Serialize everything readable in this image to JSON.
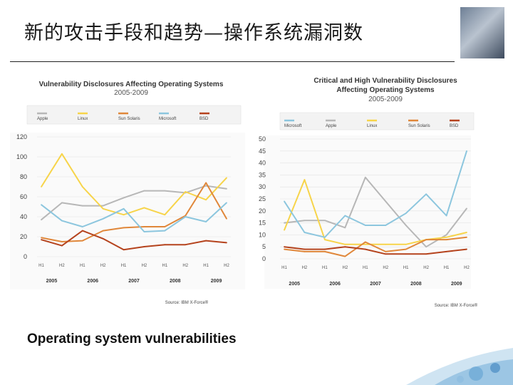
{
  "slide": {
    "title": "新的攻击手段和趋势—操作系统漏洞数",
    "caption": "Operating system vulnerabilities"
  },
  "colors": {
    "Apple": "#b7b7b7",
    "Linux": "#f7d44a",
    "Sun Solaris": "#e0873a",
    "Microsoft": "#8cc6de",
    "BSD": "#b5431d"
  },
  "chart_data": [
    {
      "type": "line",
      "title": "Vulnerability Disclosures Affecting Operating Systems",
      "subtitle": "2005-2009",
      "legend": [
        "Apple",
        "Linux",
        "Sun Solaris",
        "Microsoft",
        "BSD"
      ],
      "x": [
        "H1",
        "H2",
        "H1",
        "H2",
        "H1",
        "H2",
        "H1",
        "H2",
        "H1",
        "H2"
      ],
      "years": [
        "2005",
        "2006",
        "2007",
        "2008",
        "2009"
      ],
      "ylim": [
        0,
        120
      ],
      "yticks": [
        0,
        20,
        40,
        60,
        80,
        100,
        120
      ],
      "series": [
        {
          "name": "Apple",
          "values": [
            37,
            54,
            51,
            51,
            59,
            66,
            66,
            64,
            71,
            68
          ]
        },
        {
          "name": "Linux",
          "values": [
            70,
            103,
            70,
            48,
            42,
            49,
            42,
            65,
            57,
            79
          ]
        },
        {
          "name": "Sun Solaris",
          "values": [
            19,
            15,
            16,
            26,
            29,
            30,
            30,
            41,
            74,
            38
          ]
        },
        {
          "name": "Microsoft",
          "values": [
            52,
            36,
            30,
            38,
            48,
            25,
            26,
            40,
            35,
            54
          ]
        },
        {
          "name": "BSD",
          "values": [
            17,
            11,
            26,
            18,
            7,
            10,
            12,
            12,
            16,
            14
          ]
        }
      ],
      "source": "Source: IBM X-Force®"
    },
    {
      "type": "line",
      "title": "Critical and High Vulnerability Disclosures",
      "subtitle": "Affecting Operating Systems",
      "subtitle2": "2005-2009",
      "legend": [
        "Microsoft",
        "Apple",
        "Linux",
        "Sun Solaris",
        "BSD"
      ],
      "x": [
        "H1",
        "H2",
        "H1",
        "H2",
        "H1",
        "H2",
        "H1",
        "H2",
        "H1",
        "H2"
      ],
      "years": [
        "2005",
        "2006",
        "2007",
        "2008",
        "2009"
      ],
      "ylim": [
        0,
        50
      ],
      "yticks": [
        0,
        5,
        10,
        15,
        20,
        25,
        30,
        35,
        40,
        45,
        50
      ],
      "series": [
        {
          "name": "Apple",
          "values": [
            15,
            16,
            16,
            13,
            34,
            24,
            14,
            5,
            10,
            21
          ]
        },
        {
          "name": "Linux",
          "values": [
            12,
            33,
            8,
            6,
            6,
            6,
            6,
            8,
            9,
            11
          ]
        },
        {
          "name": "Sun Solaris",
          "values": [
            4,
            3,
            3,
            1,
            7,
            3,
            4,
            8,
            8,
            9
          ]
        },
        {
          "name": "Microsoft",
          "values": [
            24,
            11,
            9,
            18,
            14,
            14,
            19,
            27,
            18,
            45
          ]
        },
        {
          "name": "BSD",
          "values": [
            5,
            4,
            4,
            5,
            4,
            2,
            2,
            2,
            3,
            4
          ]
        }
      ],
      "source": "Source: IBM X-Force®"
    }
  ]
}
